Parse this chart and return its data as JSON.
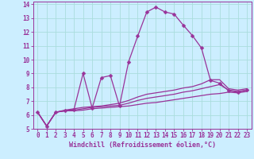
{
  "xlabel": "Windchill (Refroidissement éolien,°C)",
  "bg_color": "#cceeff",
  "line_color": "#993399",
  "grid_color": "#aadddd",
  "xlim": [
    -0.5,
    23.5
  ],
  "ylim": [
    5,
    14.2
  ],
  "xticks": [
    0,
    1,
    2,
    3,
    4,
    5,
    6,
    7,
    8,
    9,
    10,
    11,
    12,
    13,
    14,
    15,
    16,
    17,
    18,
    19,
    20,
    21,
    22,
    23
  ],
  "yticks": [
    5,
    6,
    7,
    8,
    9,
    10,
    11,
    12,
    13,
    14
  ],
  "series1_x": [
    0,
    1,
    2,
    3,
    4,
    5,
    6,
    7,
    8,
    9,
    10,
    11,
    12,
    13,
    14,
    15,
    16,
    17,
    18,
    19,
    20,
    21,
    22,
    23
  ],
  "series1_y": [
    6.2,
    5.2,
    6.2,
    6.3,
    6.4,
    9.0,
    6.5,
    8.7,
    8.85,
    6.65,
    9.85,
    11.7,
    13.45,
    13.8,
    13.45,
    13.3,
    12.5,
    11.75,
    10.85,
    8.5,
    8.3,
    7.75,
    7.65,
    7.8
  ],
  "series2_x": [
    0,
    1,
    2,
    3,
    4,
    5,
    6,
    7,
    8,
    9,
    10,
    11,
    12,
    13,
    14,
    15,
    16,
    17,
    18,
    19,
    20,
    21,
    22,
    23
  ],
  "series2_y": [
    6.2,
    5.2,
    6.2,
    6.3,
    6.3,
    6.35,
    6.45,
    6.5,
    6.55,
    6.6,
    6.65,
    6.75,
    6.85,
    6.9,
    7.0,
    7.1,
    7.2,
    7.3,
    7.4,
    7.5,
    7.55,
    7.65,
    7.6,
    7.7
  ],
  "series3_x": [
    0,
    1,
    2,
    3,
    4,
    5,
    6,
    7,
    8,
    9,
    10,
    11,
    12,
    13,
    14,
    15,
    16,
    17,
    18,
    19,
    20,
    21,
    22,
    23
  ],
  "series3_y": [
    6.2,
    5.2,
    6.2,
    6.3,
    6.35,
    6.45,
    6.55,
    6.6,
    6.65,
    6.7,
    6.85,
    7.05,
    7.2,
    7.3,
    7.4,
    7.5,
    7.65,
    7.75,
    7.9,
    8.05,
    8.2,
    7.8,
    7.7,
    7.8
  ],
  "series4_x": [
    0,
    1,
    2,
    3,
    4,
    5,
    6,
    7,
    8,
    9,
    10,
    11,
    12,
    13,
    14,
    15,
    16,
    17,
    18,
    19,
    20,
    21,
    22,
    23
  ],
  "series4_y": [
    6.2,
    5.2,
    6.2,
    6.35,
    6.45,
    6.55,
    6.6,
    6.65,
    6.75,
    6.85,
    7.05,
    7.3,
    7.5,
    7.6,
    7.7,
    7.8,
    7.95,
    8.05,
    8.25,
    8.55,
    8.55,
    7.9,
    7.8,
    7.9
  ],
  "markersize": 2.5,
  "linewidth": 0.9,
  "tick_fontsize": 5.5,
  "label_fontsize": 6.0
}
